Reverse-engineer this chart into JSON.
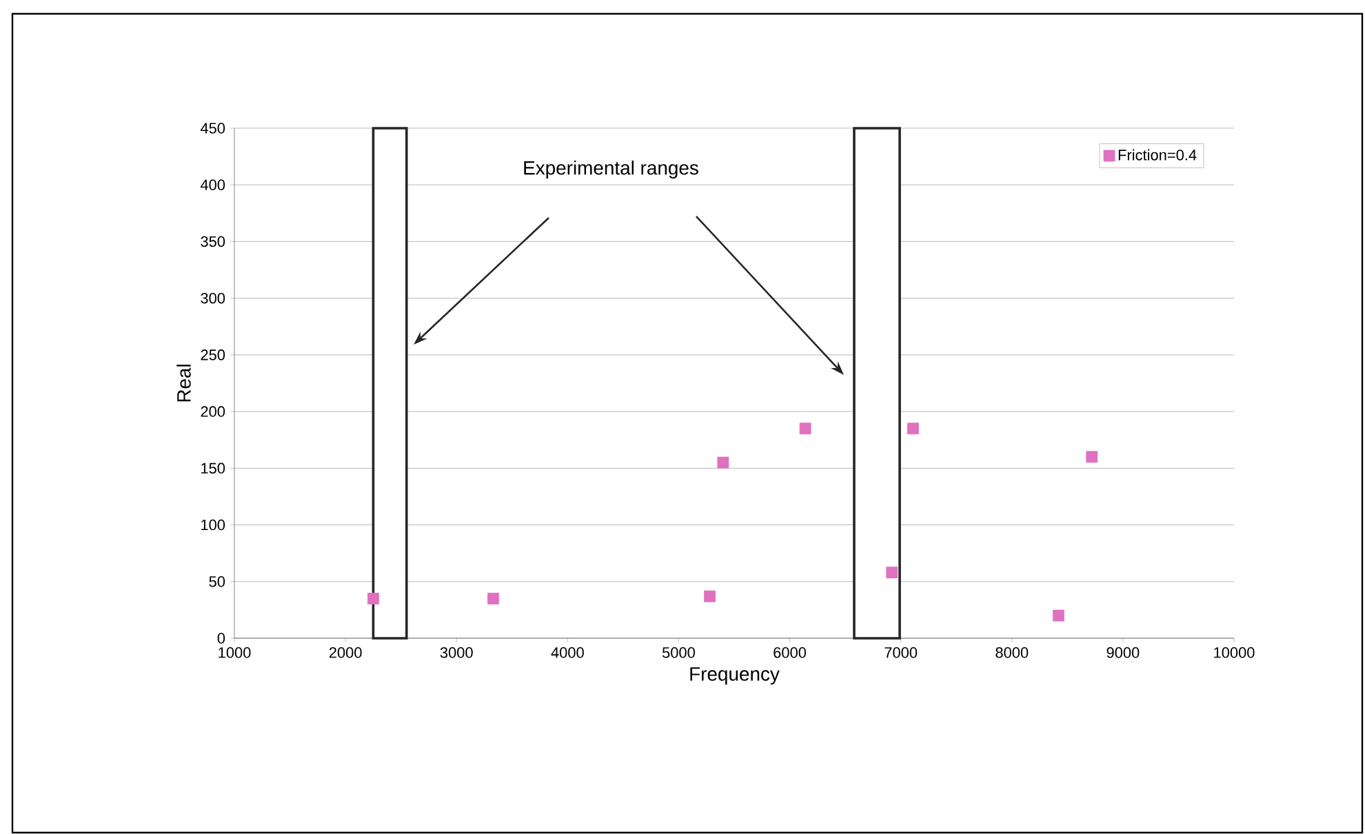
{
  "chart_data": {
    "type": "scatter",
    "xlabel": "Frequency",
    "ylabel": "Real",
    "x": [
      2250,
      3330,
      5280,
      5400,
      6140,
      6920,
      7110,
      8420,
      8720
    ],
    "series": [
      {
        "name": "Friction=0.4",
        "color": "#e070c0",
        "values": [
          35,
          35,
          37,
          155,
          185,
          58,
          185,
          20,
          160
        ]
      }
    ],
    "xlim": [
      1000,
      10000
    ],
    "xticks": [
      1000,
      2000,
      3000,
      4000,
      5000,
      6000,
      7000,
      8000,
      9000,
      10000
    ],
    "ylim": [
      0,
      450
    ],
    "yticks": [
      0,
      50,
      100,
      150,
      200,
      250,
      300,
      350,
      400,
      450
    ],
    "grid": "y",
    "legend": "top right",
    "marker": "square",
    "bands": [
      {
        "axis": "x",
        "from": 2250,
        "to": 2550,
        "color": "#ffffff"
      },
      {
        "axis": "x",
        "from": 6580,
        "to": 6990,
        "color": "#ffffff"
      }
    ],
    "annotations": [
      "Experimental ranges"
    ]
  }
}
